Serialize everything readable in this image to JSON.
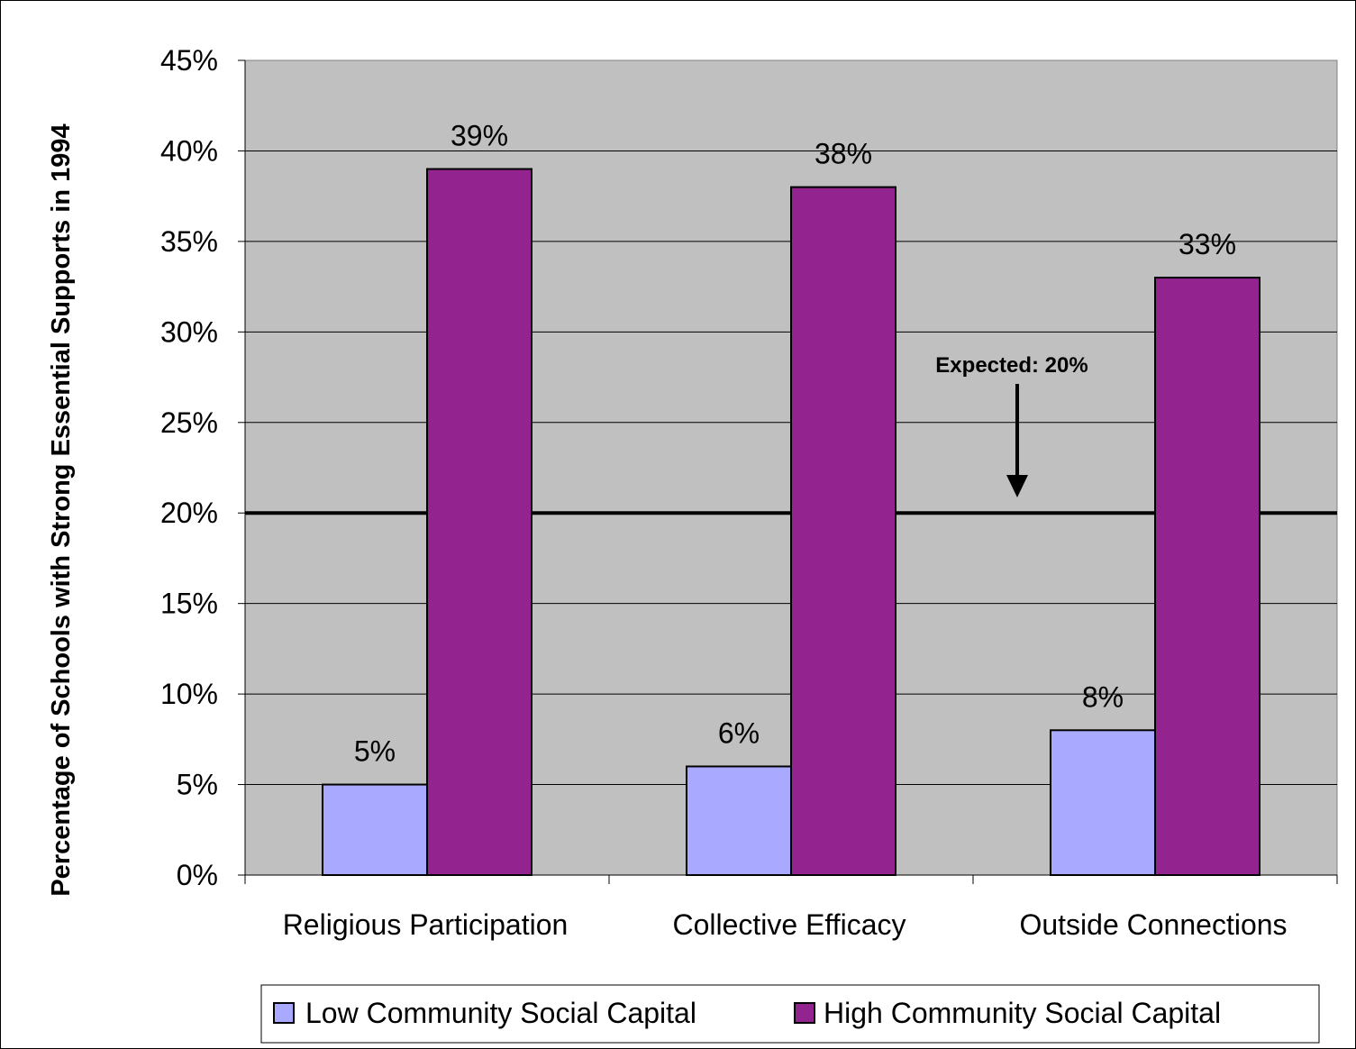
{
  "chart_data": {
    "type": "bar",
    "title": "",
    "xlabel": "",
    "ylabel": "Percentage of Schools with Strong Essential Supports in 1994",
    "categories": [
      "Religious Participation",
      "Collective Efficacy",
      "Outside Connections"
    ],
    "series": [
      {
        "name": "Low Community Social Capital",
        "values": [
          5,
          6,
          8
        ],
        "labels": [
          "5%",
          "6%",
          "8%"
        ],
        "color": "#a9aaff"
      },
      {
        "name": "High Community Social Capital",
        "values": [
          39,
          38,
          33
        ],
        "labels": [
          "39%",
          "38%",
          "33%"
        ],
        "color": "#93238f"
      }
    ],
    "ylim": [
      0,
      45
    ],
    "yticks": [
      0,
      5,
      10,
      15,
      20,
      25,
      30,
      35,
      40,
      45
    ],
    "ytick_labels": [
      "0%",
      "5%",
      "10%",
      "15%",
      "20%",
      "25%",
      "30%",
      "35%",
      "40%",
      "45%"
    ],
    "reference_line": {
      "value": 20,
      "label": "Expected: 20%"
    },
    "plot_background": "#c0c0c0",
    "grid": true,
    "legend_position": "bottom"
  }
}
